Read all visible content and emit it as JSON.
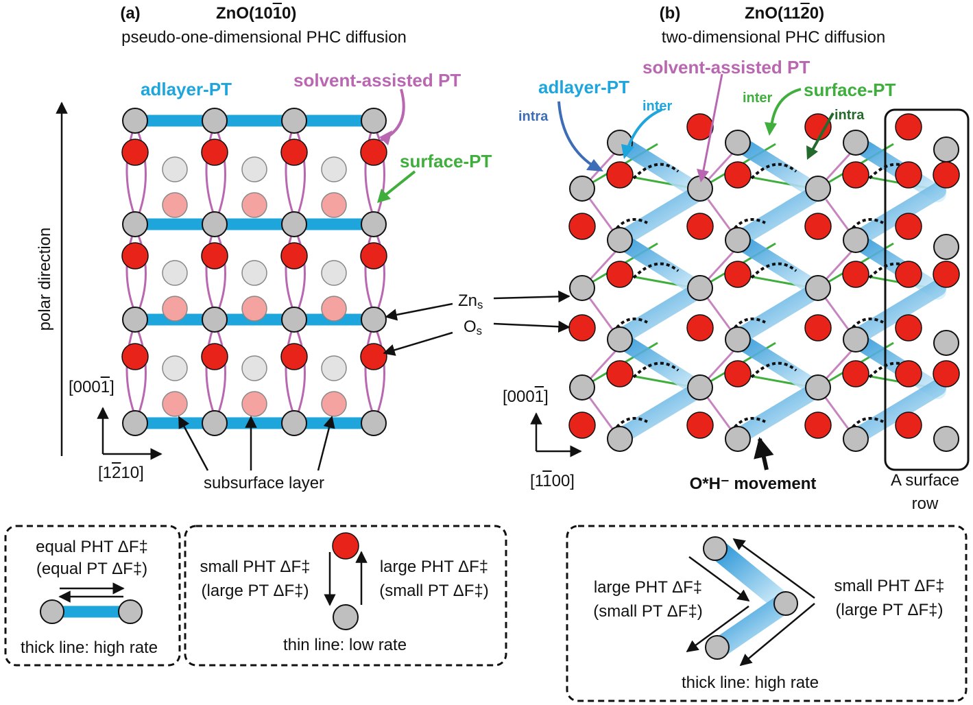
{
  "panel_a": {
    "label": "(a)",
    "title_prefix": "ZnO(10",
    "title_bar": "1",
    "title_suffix": "0)",
    "subtitle": "pseudo-one-dimensional PHC diffusion",
    "adlayer_label": "adlayer-PT",
    "solvent_label": "solvent-assisted PT",
    "surface_label": "surface-PT",
    "polar_direction": "polar direction",
    "axis_up": {
      "pre": "[000",
      "bar": "1",
      "post": "]"
    },
    "axis_right": {
      "pre": "[1",
      "bar": "2",
      "post": "10]"
    },
    "subsurface_label": "subsurface layer"
  },
  "panel_b": {
    "label": "(b)",
    "title_prefix": "ZnO(11",
    "title_bar": "2",
    "title_suffix": "0)",
    "subtitle": "two-dimensional PHC diffusion",
    "solvent_label": "solvent-assisted PT",
    "adlayer_label": "adlayer-PT",
    "inter_blue": "inter",
    "intra_blue": "intra",
    "inter_green": "inter",
    "surface_label": "surface-PT",
    "intra_green": "intra",
    "axis_up": {
      "pre": "[000",
      "bar": "1",
      "post": "]"
    },
    "axis_right": {
      "pre": "[1",
      "bar": "1",
      "post": "00]"
    },
    "movement_label": "O*H⁻ movement",
    "surface_row_line1": "A surface",
    "surface_row_line2": "row"
  },
  "atoms": {
    "zn_label": "Zn",
    "zn_sub": "s",
    "o_label": "O",
    "o_sub": "s"
  },
  "legend_1": {
    "line1": "equal PHT ΔF‡",
    "line2": "(equal PT ΔF‡)",
    "caption": "thick line: high rate"
  },
  "legend_2": {
    "left1": "small PHT ΔF‡",
    "left2": "(large PT ΔF‡)",
    "right1": "large PHT ΔF‡",
    "right2": "(small PT ΔF‡)",
    "caption": "thin line: low rate"
  },
  "legend_3": {
    "left1": "large PHT ΔF‡",
    "left2": "(small PT ΔF‡)",
    "right1": "small PHT ΔF‡",
    "right2": "(large PT ΔF‡)",
    "caption": "thick line: high rate"
  },
  "colors": {
    "oxygen": "#e8241a",
    "zinc": "#bfbfbf",
    "subsurface_zn": "#e3e3e3",
    "subsurface_o": "#f4a3a0",
    "adlayer_blue": "#1ea6dc",
    "surface_green": "#3fae3c",
    "solvent_pink": "#b867b0"
  }
}
